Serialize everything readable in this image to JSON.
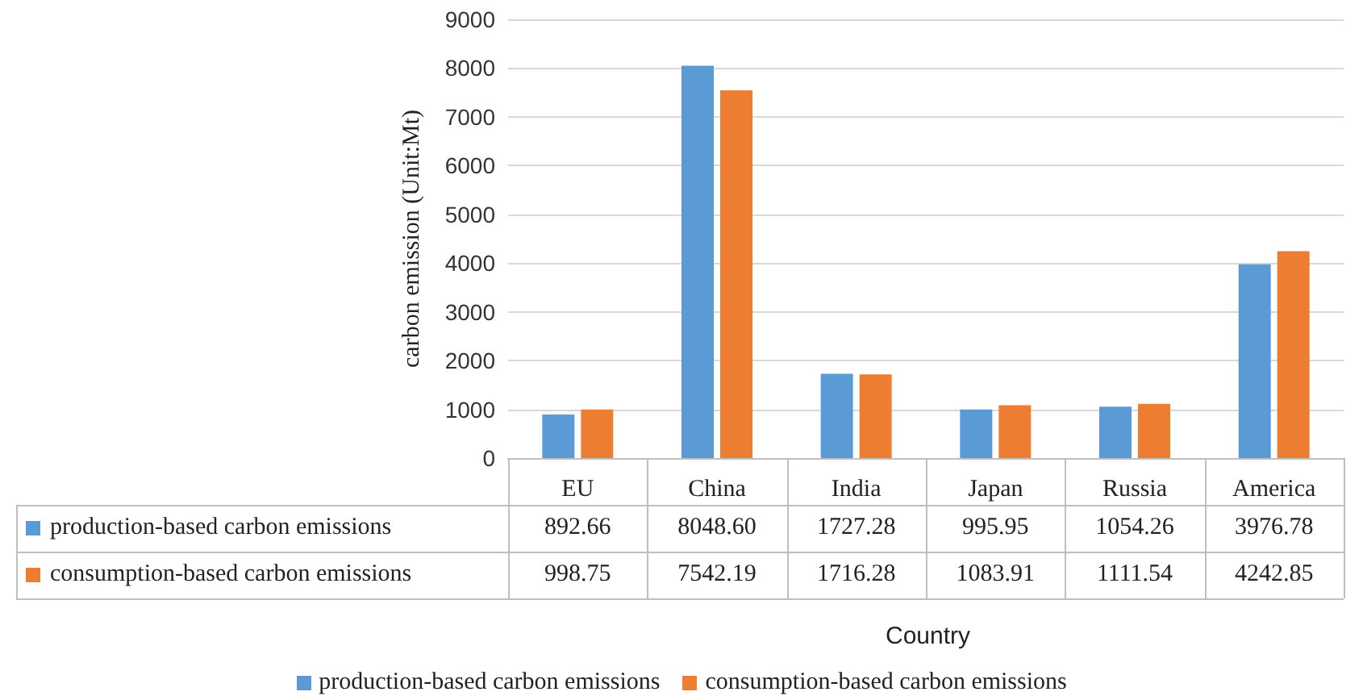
{
  "chart_data": {
    "type": "bar",
    "annotations": [
      "Country"
    ],
    "ylabel": "carbon emission (Unit:Mt)",
    "categories": [
      "EU",
      "China",
      "India",
      "Japan",
      "Russia",
      "America"
    ],
    "series": [
      {
        "name": "production-based carbon emissions",
        "color": "#5b9bd5",
        "values": [
          892.66,
          8048.6,
          1727.28,
          995.95,
          1054.26,
          3976.78
        ],
        "value_labels": [
          "892.66",
          "8048.60",
          "1727.28",
          "995.95",
          "1054.26",
          "3976.78"
        ]
      },
      {
        "name": "consumption-based carbon emissions",
        "color": "#ed7d31",
        "values": [
          998.75,
          7542.19,
          1716.28,
          1083.91,
          1111.54,
          4242.85
        ],
        "value_labels": [
          "998.75",
          "7542.19",
          "1716.28",
          "1083.91",
          "1111.54",
          "4242.85"
        ]
      }
    ],
    "ylim": [
      0,
      9000
    ],
    "yticks": [
      0,
      1000,
      2000,
      3000,
      4000,
      5000,
      6000,
      7000,
      8000,
      9000
    ],
    "grid": "y",
    "legend": "bottom"
  }
}
